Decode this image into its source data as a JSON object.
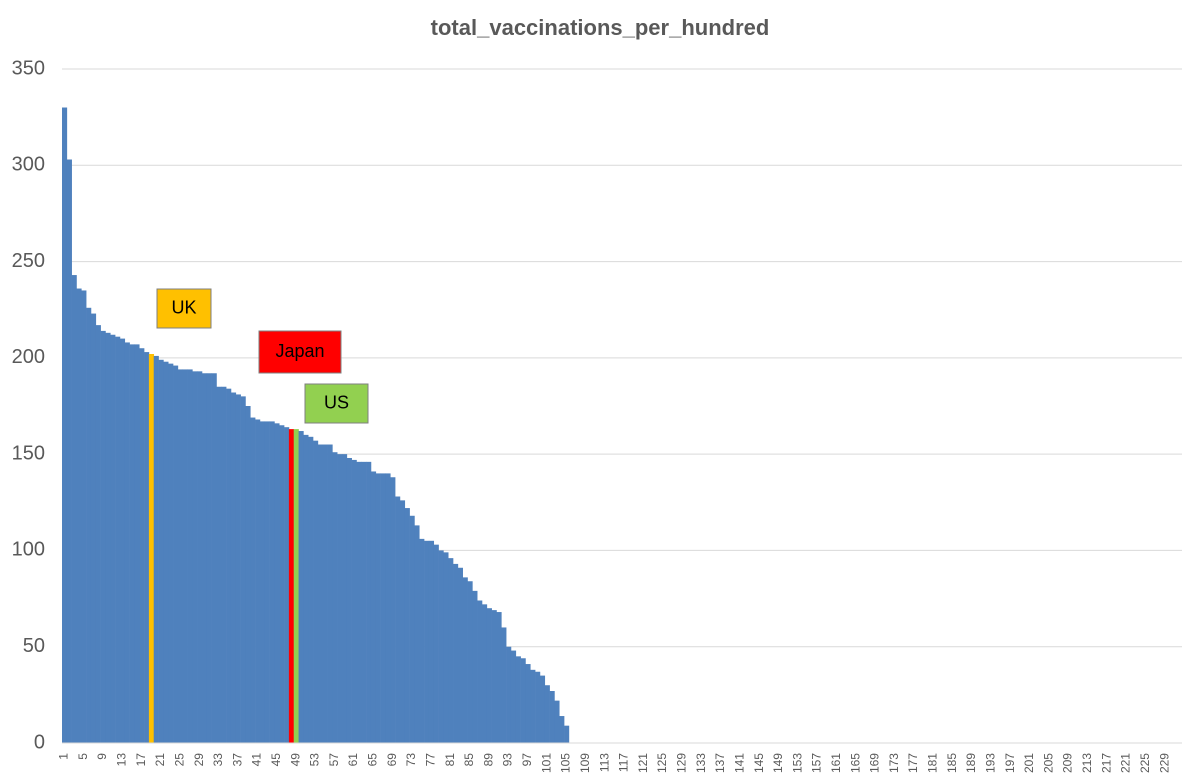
{
  "chart_data": {
    "type": "bar",
    "title": "total_vaccinations_per_hundred",
    "categories": [
      1,
      null,
      null,
      null,
      5,
      null,
      null,
      null,
      9,
      null,
      null,
      null,
      13,
      null,
      null,
      null,
      17,
      null,
      null,
      null,
      21,
      null,
      null,
      null,
      25,
      null,
      null,
      null,
      29,
      null,
      null,
      null,
      33,
      null,
      null,
      null,
      37,
      null,
      null,
      null,
      41,
      null,
      null,
      null,
      45,
      null,
      null,
      null,
      49,
      null,
      null,
      null,
      53,
      null,
      null,
      null,
      57,
      null,
      null,
      null,
      61,
      null,
      null,
      null,
      65,
      null,
      null,
      null,
      69,
      null,
      null,
      null,
      73,
      null,
      null,
      null,
      77,
      null,
      null,
      null,
      81,
      null,
      null,
      null,
      85,
      null,
      null,
      null,
      89,
      null,
      null,
      null,
      93,
      null,
      null,
      null,
      97,
      null,
      null,
      null,
      101,
      null,
      null,
      null,
      105,
      null,
      null,
      null,
      109,
      null,
      null,
      null,
      113,
      null,
      null,
      null,
      117,
      null,
      null,
      null,
      121,
      null,
      null,
      null,
      125,
      null,
      null,
      null,
      129,
      null,
      null,
      null,
      133,
      null,
      null,
      null,
      137,
      null,
      null,
      null,
      141,
      null,
      null,
      null,
      145,
      null,
      null,
      null,
      149,
      null,
      null,
      null,
      153,
      null,
      null,
      null,
      157,
      null,
      null,
      null,
      161,
      null,
      null,
      null,
      165,
      null,
      null,
      null,
      169,
      null,
      null,
      null,
      173,
      null,
      null,
      null,
      177,
      null,
      null,
      null,
      181,
      null,
      null,
      null,
      185,
      null,
      null,
      null,
      189,
      null,
      null,
      null,
      193,
      null,
      null,
      null,
      197,
      null,
      null,
      null,
      201,
      null,
      null,
      null,
      205,
      null,
      null,
      null,
      209,
      null,
      null,
      null,
      213,
      null,
      null,
      null,
      217,
      null,
      null,
      null,
      221,
      null,
      null,
      null,
      225,
      null,
      null,
      null,
      229,
      null,
      null,
      null
    ],
    "values": [
      330,
      303,
      243,
      236,
      235,
      226,
      223,
      217,
      214,
      213,
      212,
      211,
      210,
      208,
      207,
      207,
      205,
      203,
      202,
      201,
      199,
      198,
      197,
      196,
      194,
      194,
      194,
      193,
      193,
      192,
      192,
      192,
      185,
      185,
      184,
      182,
      181,
      180,
      175,
      169,
      168,
      167,
      167,
      167,
      166,
      165,
      164,
      163,
      163,
      162,
      160,
      159,
      157,
      155,
      155,
      155,
      151,
      150,
      150,
      148,
      147,
      146,
      146,
      146,
      141,
      140,
      140,
      140,
      138,
      128,
      126,
      122,
      118,
      113,
      106,
      105,
      105,
      103,
      100,
      99,
      96,
      93,
      91,
      86,
      84,
      79,
      74,
      72,
      70,
      69,
      68,
      60,
      50,
      48,
      45,
      44,
      41,
      38,
      37,
      35,
      30,
      27,
      22,
      14,
      9,
      null,
      null,
      null,
      null,
      null,
      null,
      null,
      null,
      null,
      null,
      null,
      null,
      null,
      null,
      null,
      null,
      null,
      null,
      null,
      null,
      null,
      null,
      null,
      null,
      null,
      null,
      null,
      null,
      null,
      null,
      null,
      null,
      null,
      null,
      null,
      null,
      null,
      null,
      null,
      null,
      null,
      null,
      null,
      null,
      null,
      null,
      null,
      null,
      null,
      null,
      null,
      null,
      null,
      null,
      null,
      null,
      null,
      null,
      null,
      null,
      null,
      null,
      null,
      null,
      null,
      null,
      null,
      null,
      null,
      null,
      null,
      null,
      null,
      null,
      null,
      null,
      null,
      null,
      null,
      null,
      null,
      null,
      null,
      null,
      null,
      null,
      null,
      null,
      null,
      null,
      null,
      null,
      null,
      null,
      null,
      null,
      null,
      null,
      null,
      null,
      null,
      null,
      null,
      null,
      null,
      null,
      null,
      null,
      null,
      null,
      null,
      null,
      null,
      null,
      null,
      null,
      null,
      null,
      null,
      null,
      null,
      null,
      null,
      null,
      null,
      null,
      null
    ],
    "color": "#4f81bd",
    "highlights": [
      {
        "label": "UK",
        "index": 18,
        "color": "#ffc000"
      },
      {
        "label": "Japan",
        "index": 47,
        "color": "#ff0000"
      },
      {
        "label": "US",
        "index": 48,
        "color": "#92d050"
      }
    ],
    "ylim": [
      0,
      350
    ],
    "yticks": [
      0,
      50,
      100,
      150,
      200,
      250,
      300,
      350
    ],
    "grid": true
  }
}
